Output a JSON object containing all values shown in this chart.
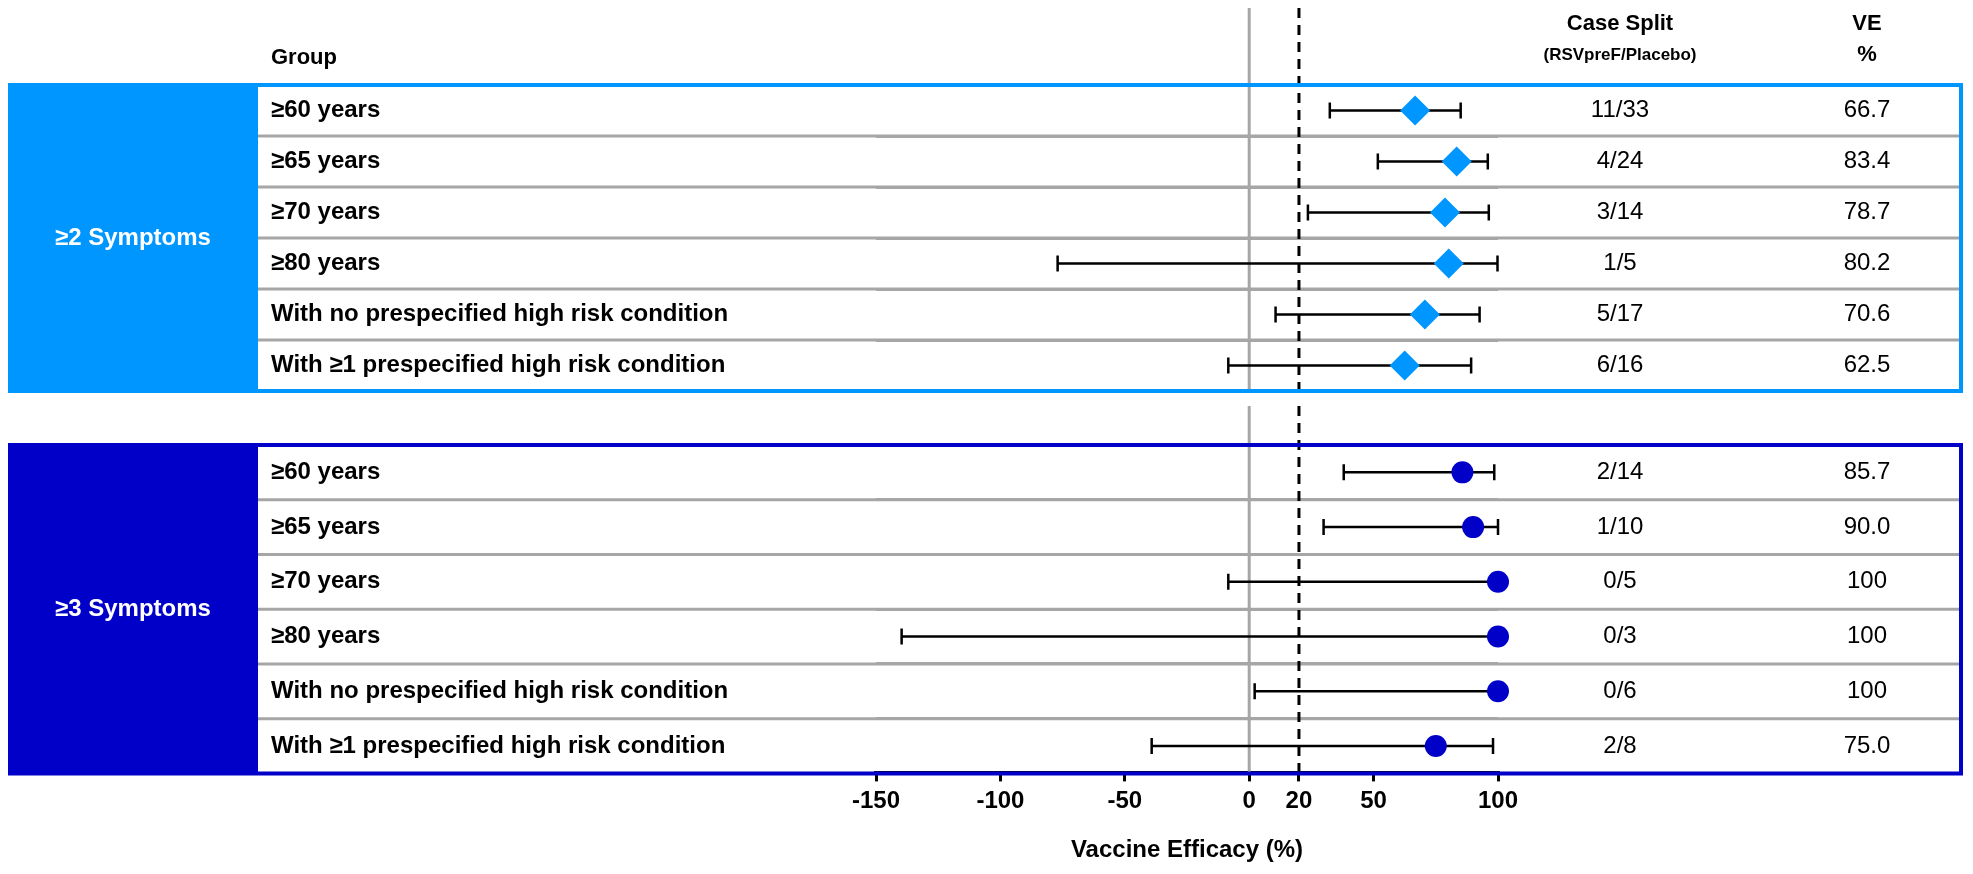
{
  "chart_data": [
    {
      "type": "scatter",
      "orientation": "horizontal",
      "title": "≥2 Symptoms",
      "categories": [
        "≥60 years",
        "≥65 years",
        "≥70 years",
        "≥80 years",
        "With no prespecified high risk condition",
        "With ≥1 prespecified high risk condition"
      ],
      "series": [
        {
          "color": "#0096ff",
          "values": [
            66.7,
            83.4,
            78.7,
            80.2,
            70.6,
            62.5
          ],
          "errors": [
            [
              32.4,
              85.0
            ],
            [
              51.7,
              95.9
            ],
            [
              23.6,
              96.3
            ],
            [
              -77.0,
              99.8
            ],
            [
              10.6,
              92.6
            ],
            [
              -8.4,
              89.2
            ]
          ],
          "value_labels": [
            "66.7",
            "83.4",
            "78.7",
            "80.2",
            "70.6",
            "62.5"
          ]
        }
      ],
      "marker": "diamond",
      "xlim": [
        -150,
        100
      ],
      "tick_labels": "y",
      "grid": "y",
      "legend": false,
      "ref_lines": [
        {
          "axis": "x",
          "value": 0,
          "color": "#a6a6a6",
          "line_style": "solid"
        },
        {
          "axis": "x",
          "value": 20,
          "color": "#000000",
          "line_style": "dashed"
        }
      ],
      "annotations": [
        "Group",
        "Case Split",
        "(RSVpreF/Placebo)",
        "VE",
        "%",
        "11/33",
        "4/24",
        "3/14",
        "1/5",
        "5/17",
        "6/16"
      ]
    },
    {
      "type": "scatter",
      "orientation": "horizontal",
      "title": "≥3 Symptoms",
      "categories": [
        "≥60 years",
        "≥65 years",
        "≥70 years",
        "≥80 years",
        "With no prespecified high risk condition",
        "With ≥1 prespecified high risk condition"
      ],
      "series": [
        {
          "color": "#0000c8",
          "values": [
            85.7,
            90.0,
            100,
            100,
            100,
            75.0
          ],
          "errors": [
            [
              38.0,
              98.5
            ],
            [
              29.9,
              100
            ],
            [
              -8.4,
              100
            ],
            [
              -139.7,
              100
            ],
            [
              2.2,
              100
            ],
            [
              -39.2,
              98.0
            ]
          ],
          "value_labels": [
            "85.7",
            "90.0",
            "100",
            "100",
            "100",
            "75.0"
          ]
        }
      ],
      "marker": "circle",
      "xlim": [
        -150,
        100
      ],
      "xticks": [
        -150,
        -100,
        -50,
        0,
        20,
        50,
        100
      ],
      "xlabel": "Vaccine Efficacy (%)",
      "grid": "y",
      "legend": false,
      "ref_lines": [
        {
          "axis": "x",
          "value": 0,
          "color": "#a6a6a6",
          "line_style": "solid"
        },
        {
          "axis": "x",
          "value": 20,
          "color": "#000000",
          "line_style": "dashed"
        }
      ],
      "annotations": [
        "2/14",
        "1/10",
        "0/5",
        "0/3",
        "0/6",
        "2/8"
      ]
    }
  ]
}
